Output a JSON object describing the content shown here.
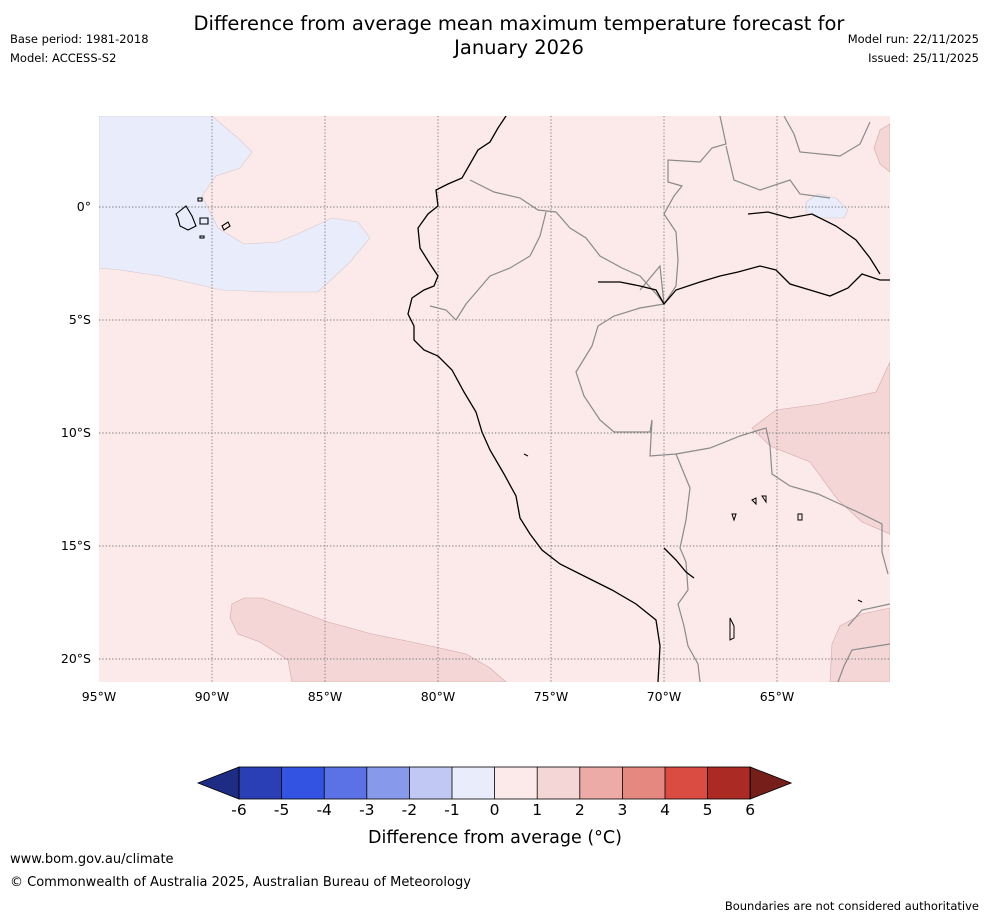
{
  "header": {
    "title_line1": "Difference from average mean maximum temperature forecast for",
    "title_line2": "January 2026",
    "base_period": "Base period: 1981-2018",
    "model": "Model: ACCESS-S2",
    "model_run": "Model run: 22/11/2025",
    "issued": "Issued: 25/11/2025"
  },
  "map": {
    "lat_labels": [
      "0°",
      "5°S",
      "10°S",
      "15°S",
      "20°S"
    ],
    "lon_labels": [
      "95°W",
      "90°W",
      "85°W",
      "80°W",
      "75°W",
      "70°W",
      "65°W"
    ],
    "fill_colors": {
      "neg_0_1": "#e8ecfb",
      "pos_0_1": "#fbeae9",
      "pos_1_2": "#f4d6d6"
    }
  },
  "colorbar": {
    "tick_labels": [
      "-6",
      "-5",
      "-4",
      "-3",
      "-2",
      "-1",
      "0",
      "1",
      "2",
      "3",
      "4",
      "5",
      "6"
    ],
    "colors": [
      "#1f2c84",
      "#2a3eb5",
      "#3353e2",
      "#5a72e6",
      "#8699ea",
      "#c1c8f4",
      "#e8ecfb",
      "#fbeae9",
      "#f4d6d6",
      "#edaba7",
      "#e48880",
      "#da4b41",
      "#ac2a24",
      "#751e1a"
    ],
    "title": "Difference from average ($^\\circ$C)",
    "title_display": "Difference from average (°C)"
  },
  "footer": {
    "url": "www.bom.gov.au/climate",
    "copyright": "© Commonwealth of Australia 2025, Australian Bureau of Meteorology",
    "disclaimer": "Boundaries are not considered authoritative"
  }
}
